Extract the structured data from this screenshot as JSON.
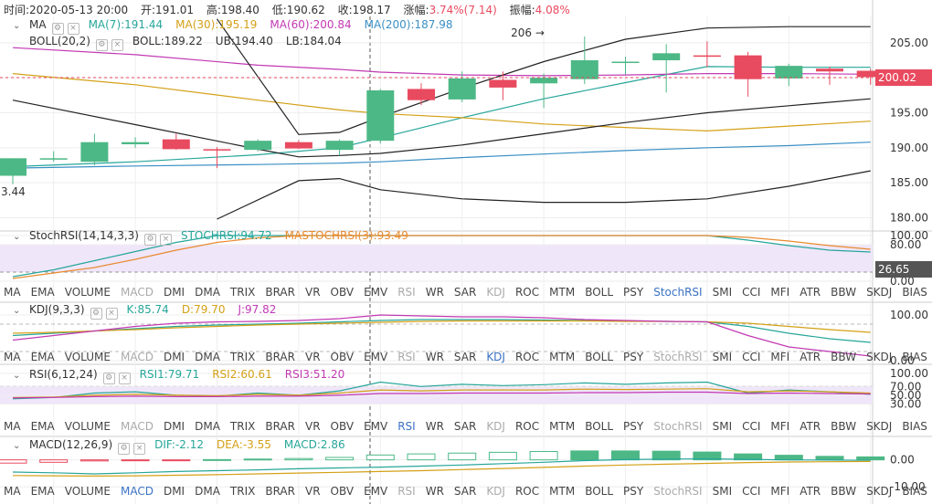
{
  "header": {
    "time": "时间:2020-05-13 20:00",
    "open": "开:191.01",
    "high": "高:198.40",
    "low": "低:190.62",
    "close": "收:198.17",
    "change_label": "涨幅:",
    "change_value": "3.74%(7.14)",
    "amplitude_label": "振幅:",
    "amplitude_value": "4.08%"
  },
  "legends": {
    "ma": {
      "name": "MA",
      "values": [
        {
          "text": "MA(7):191.44",
          "color": "#26a69a"
        },
        {
          "text": "MA(30):195.19",
          "color": "#d4a017"
        },
        {
          "text": "MA(60):200.84",
          "color": "#c239b3"
        },
        {
          "text": "MA(200):187.98",
          "color": "#3a8fc4"
        }
      ]
    },
    "boll": {
      "name": "BOLL(20,2)",
      "values": [
        {
          "text": "BOLL:189.22",
          "color": "#333333"
        },
        {
          "text": "UB:194.40",
          "color": "#333333"
        },
        {
          "text": "LB:184.04",
          "color": "#333333"
        }
      ]
    },
    "stochrsi": {
      "name": "StochRSI(14,14,3,3)",
      "values": [
        {
          "text": "STOCHRSI:94.72",
          "color": "#26a69a"
        },
        {
          "text": "MASTOCHRSI(3):93.49",
          "color": "#e88a2e"
        }
      ]
    },
    "kdj": {
      "name": "KDJ(9,3,3)",
      "values": [
        {
          "text": "K:85.74",
          "color": "#26a69a"
        },
        {
          "text": "D:79.70",
          "color": "#d4a017"
        },
        {
          "text": "J:97.82",
          "color": "#c239b3"
        }
      ]
    },
    "rsi": {
      "name": "RSI(6,12,24)",
      "values": [
        {
          "text": "RSI1:79.71",
          "color": "#26a69a"
        },
        {
          "text": "RSI2:60.61",
          "color": "#d4a017"
        },
        {
          "text": "RSI3:51.20",
          "color": "#c239b3"
        }
      ]
    },
    "macd": {
      "name": "MACD(12,26,9)",
      "values": [
        {
          "text": "DIF:-2.12",
          "color": "#26a69a"
        },
        {
          "text": "DEA:-3.55",
          "color": "#d4a017"
        },
        {
          "text": "MACD:2.86",
          "color": "#26a69a"
        }
      ]
    }
  },
  "indicator_tabs": [
    "MA",
    "EMA",
    "VOLUME",
    "MACD",
    "DMI",
    "DMA",
    "TRIX",
    "BRAR",
    "VR",
    "OBV",
    "EMV",
    "RSI",
    "WR",
    "SAR",
    "KDJ",
    "ROC",
    "MTM",
    "BOLL",
    "PSY",
    "StochRSI",
    "SMI",
    "CCI",
    "MFI",
    "ATR",
    "BBW",
    "SKDJ",
    "BIAS",
    "DPO"
  ],
  "tab_states": {
    "row1": {
      "active": "StochRSI",
      "dim": [
        "MACD",
        "RSI",
        "KDJ"
      ]
    },
    "row2": {
      "active": "KDJ",
      "dim": [
        "MACD",
        "RSI",
        "StochRSI"
      ]
    },
    "row3": {
      "active": "RSI",
      "dim": [
        "MACD",
        "KDJ",
        "StochRSI"
      ]
    },
    "row4": {
      "active": "MACD",
      "dim": [
        "RSI",
        "KDJ",
        "StochRSI"
      ]
    }
  },
  "colors": {
    "up": "#4cb886",
    "down": "#e84a5f",
    "grid": "#eeeeee",
    "axis_text": "#333333",
    "band": "#f0e6fa"
  },
  "chart_data": [
    {
      "type": "candlestick",
      "panel": "price",
      "y_ticks": [
        "205.00",
        "200.00",
        "195.00",
        "190.00",
        "185.00",
        "180.00"
      ],
      "ylim": [
        178.5,
        208.5
      ],
      "current_price": "200.02",
      "annotations": [
        {
          "text": "206 →",
          "index": 13
        },
        {
          "text": "3.44",
          "index": 0
        }
      ],
      "candles": [
        {
          "o": 186,
          "h": 188.5,
          "l": 184.8,
          "c": 188.5
        },
        {
          "o": 188.5,
          "h": 189.5,
          "l": 188,
          "c": 188.5
        },
        {
          "o": 188,
          "h": 192,
          "l": 187.5,
          "c": 190.8
        },
        {
          "o": 190.5,
          "h": 191.5,
          "l": 190,
          "c": 190.8
        },
        {
          "o": 191.2,
          "h": 192,
          "l": 189.7,
          "c": 189.8
        },
        {
          "o": 189.8,
          "h": 190.1,
          "l": 187.1,
          "c": 189.6
        },
        {
          "o": 189.7,
          "h": 191.2,
          "l": 189.5,
          "c": 191.0
        },
        {
          "o": 190.8,
          "h": 191.1,
          "l": 189.8,
          "c": 189.9
        },
        {
          "o": 189.7,
          "h": 191.2,
          "l": 188.9,
          "c": 191.0
        },
        {
          "o": 191.0,
          "h": 198.4,
          "l": 190.6,
          "c": 198.2
        },
        {
          "o": 198.4,
          "h": 199.2,
          "l": 196.1,
          "c": 196.8
        },
        {
          "o": 196.9,
          "h": 200.9,
          "l": 196.5,
          "c": 199.9
        },
        {
          "o": 199.7,
          "h": 200.9,
          "l": 196.8,
          "c": 198.6
        },
        {
          "o": 199.2,
          "h": 200.6,
          "l": 195.7,
          "c": 200.0
        },
        {
          "o": 199.8,
          "h": 205.9,
          "l": 199.1,
          "c": 202.5
        },
        {
          "o": 202.3,
          "h": 203.0,
          "l": 200.5,
          "c": 202.3
        },
        {
          "o": 202.5,
          "h": 204.8,
          "l": 197.9,
          "c": 203.5
        },
        {
          "o": 203.2,
          "h": 205.2,
          "l": 201.5,
          "c": 203.0
        },
        {
          "o": 203.2,
          "h": 203.7,
          "l": 197.3,
          "c": 199.8
        },
        {
          "o": 199.9,
          "h": 202.0,
          "l": 198.8,
          "c": 201.7
        },
        {
          "o": 201.3,
          "h": 201.6,
          "l": 199.0,
          "c": 200.9
        },
        {
          "o": 201.0,
          "h": 201.3,
          "l": 199.0,
          "c": 200.1
        }
      ],
      "lines": [
        {
          "name": "MA(7)",
          "color": "#26a69a",
          "points": [
            [
              0,
              187.3
            ],
            [
              3,
              188.0
            ],
            [
              6,
              189.0
            ],
            [
              8,
              190.0
            ],
            [
              9,
              191.4
            ],
            [
              11,
              194.3
            ],
            [
              13,
              197.0
            ],
            [
              15,
              199.3
            ],
            [
              17,
              201.6
            ],
            [
              19,
              201.5
            ],
            [
              21,
              201.5
            ]
          ]
        },
        {
          "name": "MA(30)",
          "color": "#d4a017",
          "points": [
            [
              0,
              200.6
            ],
            [
              3,
              199.0
            ],
            [
              6,
              196.8
            ],
            [
              8,
              195.4
            ],
            [
              9,
              194.9
            ],
            [
              11,
              194.3
            ],
            [
              13,
              193.4
            ],
            [
              15,
              192.9
            ],
            [
              17,
              192.4
            ],
            [
              19,
              193.1
            ],
            [
              21,
              193.8
            ]
          ]
        },
        {
          "name": "MA(60)",
          "color": "#c239b3",
          "points": [
            [
              0,
              204.3
            ],
            [
              3,
              203.3
            ],
            [
              6,
              201.8
            ],
            [
              8,
              201.2
            ],
            [
              9,
              200.8
            ],
            [
              11,
              200.4
            ],
            [
              13,
              200.3
            ],
            [
              15,
              200.4
            ],
            [
              17,
              200.6
            ],
            [
              19,
              200.6
            ],
            [
              21,
              200.5
            ]
          ]
        },
        {
          "name": "MA(200)",
          "color": "#3a8fc4",
          "points": [
            [
              0,
              187.1
            ],
            [
              3,
              187.4
            ],
            [
              6,
              187.6
            ],
            [
              8,
              187.8
            ],
            [
              9,
              188.0
            ],
            [
              11,
              188.6
            ],
            [
              13,
              189.1
            ],
            [
              15,
              189.6
            ],
            [
              17,
              190.0
            ],
            [
              19,
              190.3
            ],
            [
              21,
              190.8
            ]
          ]
        },
        {
          "name": "BOLL",
          "color": "#222222",
          "points": [
            [
              0,
              196.8
            ],
            [
              3,
              193.3
            ],
            [
              6,
              189.8
            ],
            [
              7,
              188.7
            ],
            [
              8,
              188.9
            ],
            [
              9,
              189.2
            ],
            [
              11,
              190.4
            ],
            [
              13,
              192.0
            ],
            [
              15,
              193.6
            ],
            [
              17,
              195.0
            ],
            [
              19,
              196.0
            ],
            [
              21,
              197.0
            ]
          ]
        },
        {
          "name": "UB",
          "color": "#222222",
          "points": [
            [
              5,
              208.4
            ],
            [
              7,
              191.9
            ],
            [
              8,
              192.2
            ],
            [
              9,
              194.4
            ],
            [
              11,
              198.5
            ],
            [
              13,
              202.3
            ],
            [
              15,
              205.5
            ],
            [
              17,
              207.1
            ],
            [
              19,
              207.3
            ],
            [
              21,
              207.3
            ]
          ]
        },
        {
          "name": "LB",
          "color": "#222222",
          "points": [
            [
              5,
              179.8
            ],
            [
              7,
              185.3
            ],
            [
              8,
              185.6
            ],
            [
              9,
              184.0
            ],
            [
              11,
              182.7
            ],
            [
              13,
              182.2
            ],
            [
              15,
              182.2
            ],
            [
              17,
              182.7
            ],
            [
              19,
              184.5
            ],
            [
              21,
              186.7
            ]
          ]
        }
      ]
    },
    {
      "type": "line",
      "panel": "stochrsi",
      "y_ticks": [
        "100.00",
        "80.00",
        "0.00"
      ],
      "ylim": [
        0,
        100
      ],
      "band": [
        20,
        80
      ],
      "current_value": "26.65",
      "series": [
        {
          "name": "STOCHRSI",
          "color": "#26a69a",
          "values": [
            10,
            25,
            45,
            65,
            85,
            100,
            100,
            100,
            100,
            100,
            100,
            100,
            100,
            100,
            100,
            100,
            100,
            100,
            90,
            78,
            68,
            64
          ]
        },
        {
          "name": "MASTOCHRSI(3)",
          "color": "#e88a2e",
          "values": [
            6,
            18,
            30,
            48,
            68,
            85,
            95,
            100,
            100,
            100,
            100,
            100,
            100,
            100,
            100,
            100,
            100,
            100,
            96,
            88,
            78,
            70
          ]
        }
      ]
    },
    {
      "type": "line",
      "panel": "kdj",
      "y_ticks": [
        "100.00",
        "0.00"
      ],
      "ylim": [
        0,
        110
      ],
      "series": [
        {
          "name": "K",
          "color": "#26a69a",
          "values": [
            55,
            60,
            65,
            70,
            75,
            78,
            80,
            82,
            85,
            88,
            90,
            90,
            90,
            89,
            88,
            87,
            86,
            85,
            75,
            60,
            48,
            40
          ]
        },
        {
          "name": "D",
          "color": "#d4a017",
          "values": [
            60,
            62,
            65,
            68,
            72,
            75,
            78,
            80,
            82,
            84,
            86,
            87,
            87,
            87,
            87,
            86,
            86,
            85,
            82,
            75,
            68,
            62
          ]
        },
        {
          "name": "J",
          "color": "#c239b3",
          "values": [
            45,
            55,
            65,
            75,
            82,
            85,
            86,
            88,
            92,
            100,
            98,
            96,
            96,
            94,
            90,
            88,
            86,
            85,
            55,
            30,
            20,
            10
          ]
        }
      ]
    },
    {
      "type": "line",
      "panel": "rsi",
      "y_ticks": [
        "100.00",
        "70.00",
        "50.00",
        "30.00"
      ],
      "ylim": [
        0,
        110
      ],
      "band": [
        30,
        70
      ],
      "series": [
        {
          "name": "RSI1",
          "color": "#26a69a",
          "values": [
            42,
            45,
            55,
            58,
            50,
            48,
            55,
            50,
            60,
            80,
            70,
            75,
            72,
            74,
            78,
            75,
            78,
            80,
            55,
            62,
            58,
            52
          ]
        },
        {
          "name": "RSI2",
          "color": "#d4a017",
          "values": [
            45,
            46,
            50,
            52,
            50,
            49,
            52,
            50,
            55,
            62,
            60,
            62,
            62,
            62,
            64,
            63,
            64,
            65,
            58,
            60,
            58,
            55
          ]
        },
        {
          "name": "RSI3",
          "color": "#c239b3",
          "values": [
            44,
            45,
            47,
            48,
            47,
            47,
            48,
            48,
            50,
            54,
            54,
            55,
            55,
            55,
            56,
            56,
            57,
            57,
            54,
            55,
            54,
            53
          ]
        }
      ]
    },
    {
      "type": "bar",
      "panel": "macd",
      "y_ticks": [
        "0.00",
        "-10.00"
      ],
      "ylim": [
        -15,
        8
      ],
      "histogram": [
        -1.2,
        -0.9,
        -0.4,
        -0.2,
        -0.1,
        0.1,
        0.3,
        0.5,
        0.9,
        1.8,
        2.2,
        2.5,
        2.8,
        3.1,
        3.3,
        3.3,
        3.2,
        2.9,
        2.2,
        1.7,
        1.3,
        1.1
      ],
      "histogram_filled": [
        false,
        false,
        false,
        false,
        false,
        false,
        false,
        false,
        false,
        false,
        false,
        false,
        false,
        false,
        true,
        true,
        true,
        true,
        true,
        true,
        true,
        true
      ],
      "series": [
        {
          "name": "DIF",
          "color": "#26a69a",
          "values": [
            -4.5,
            -4.8,
            -5.2,
            -4.8,
            -4.3,
            -4.0,
            -3.7,
            -3.3,
            -3.0,
            -2.7,
            -2.3,
            -1.9,
            -1.4,
            -0.9,
            -0.3,
            0.1,
            0.3,
            0.4,
            0.2,
            0.0,
            -0.1,
            -0.2
          ]
        },
        {
          "name": "DEA",
          "color": "#d4a017",
          "values": [
            -5.8,
            -5.9,
            -6.0,
            -5.9,
            -5.7,
            -5.5,
            -5.2,
            -4.9,
            -4.6,
            -4.3,
            -4.0,
            -3.6,
            -3.2,
            -2.8,
            -2.3,
            -1.9,
            -1.6,
            -1.3,
            -1.0,
            -0.8,
            -0.7,
            -0.6
          ]
        }
      ]
    }
  ]
}
